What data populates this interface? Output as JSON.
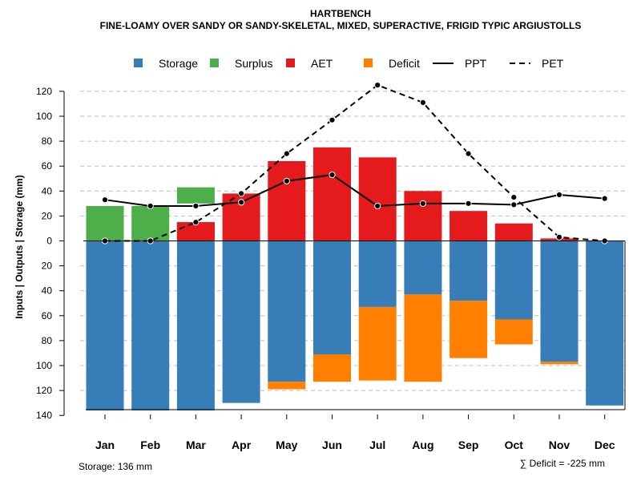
{
  "chart_data": {
    "type": "bar",
    "title": "HARTBENCH",
    "subtitle": "FINE-LOAMY OVER SANDY OR SANDY-SKELETAL, MIXED, SUPERACTIVE, FRIGID TYPIC ARGIUSTOLLS",
    "ylabel": "Inputs | Outputs | Storage    (mm)",
    "ylim": [
      -140,
      130
    ],
    "yticks": [
      120,
      100,
      80,
      60,
      40,
      20,
      0,
      -20,
      -40,
      -60,
      -80,
      -100,
      -120,
      -140
    ],
    "ytick_labels": [
      "120",
      "100",
      "80",
      "60",
      "40",
      "20",
      "0",
      "20",
      "40",
      "60",
      "80",
      "100",
      "120",
      "140"
    ],
    "grid": true,
    "legend_position": "top",
    "categories": [
      "Jan",
      "Feb",
      "Mar",
      "Apr",
      "May",
      "Jun",
      "Jul",
      "Aug",
      "Sep",
      "Oct",
      "Nov",
      "Dec"
    ],
    "series": [
      {
        "name": "Storage",
        "color": "#377EB8",
        "kind": "bar",
        "values": [
          -136,
          -136,
          -136,
          -130,
          -113,
          -91,
          -53,
          -43,
          -48,
          -63,
          -97,
          -132
        ]
      },
      {
        "name": "Surplus",
        "color": "#4DAF4A",
        "kind": "bar",
        "values": [
          28,
          28,
          28,
          0,
          0,
          0,
          0,
          0,
          0,
          0,
          0,
          0
        ]
      },
      {
        "name": "AET",
        "color": "#E41A1C",
        "kind": "bar",
        "values": [
          0,
          0,
          15,
          38,
          64,
          75,
          67,
          40,
          24,
          14,
          2,
          0
        ]
      },
      {
        "name": "Deficit",
        "color": "#FF7F00",
        "kind": "bar",
        "values": [
          0,
          0,
          0,
          0,
          6,
          22,
          59,
          70,
          46,
          20,
          2,
          0
        ]
      },
      {
        "name": "PPT",
        "color": "#000000",
        "kind": "line",
        "dash": "solid",
        "values": [
          33,
          28,
          28,
          31,
          48,
          53,
          28,
          30,
          30,
          29,
          37,
          34
        ]
      },
      {
        "name": "PET",
        "color": "#000000",
        "kind": "line",
        "dash": "dashed",
        "values": [
          0,
          0,
          15,
          38,
          70,
          97,
          125,
          111,
          70,
          35,
          3,
          0
        ]
      }
    ],
    "annotations": {
      "storage_note": "Storage: 136 mm",
      "deficit_note": "∑ Deficit = -225 mm"
    }
  }
}
